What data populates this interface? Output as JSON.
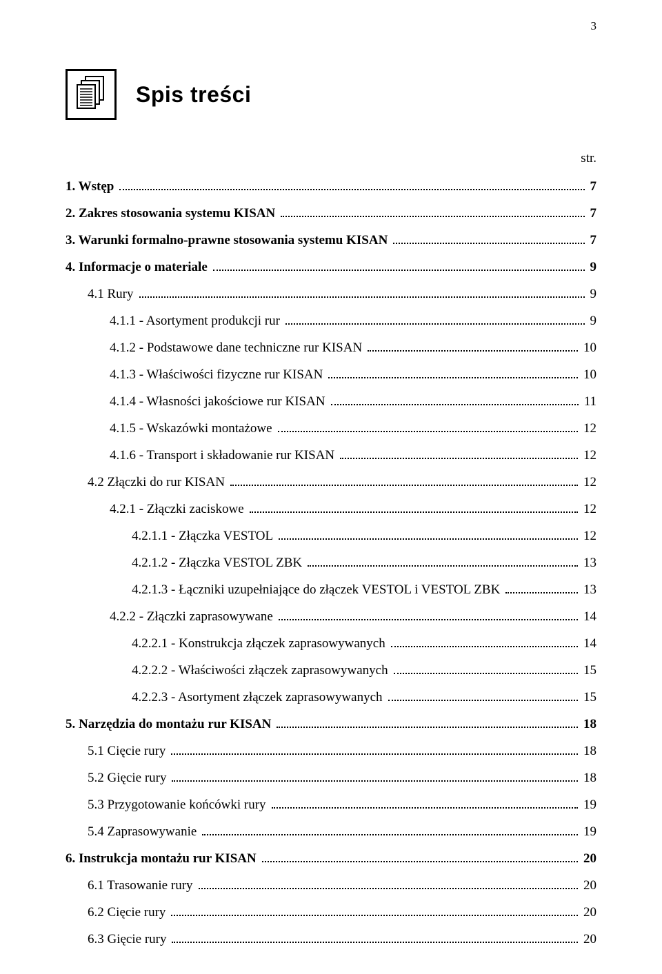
{
  "page_number": "3",
  "title": "Spis treści",
  "str_label": "str.",
  "toc": [
    {
      "label": "1. Wstęp",
      "page": "7",
      "level": 0,
      "bold": true
    },
    {
      "label": "2. Zakres stosowania systemu KISAN",
      "page": "7",
      "level": 0,
      "bold": true
    },
    {
      "label": "3. Warunki formalno-prawne stosowania systemu KISAN",
      "page": "7",
      "level": 0,
      "bold": true
    },
    {
      "label": "4. Informacje o materiale",
      "page": "9",
      "level": 0,
      "bold": true
    },
    {
      "label": "4.1 Rury",
      "page": "9",
      "level": 1,
      "bold": false
    },
    {
      "label": "4.1.1 - Asortyment produkcji rur",
      "page": "9",
      "level": 2,
      "bold": false
    },
    {
      "label": "4.1.2 - Podstawowe dane techniczne rur KISAN",
      "page": "10",
      "level": 2,
      "bold": false
    },
    {
      "label": "4.1.3 - Właściwości fizyczne rur KISAN",
      "page": "10",
      "level": 2,
      "bold": false
    },
    {
      "label": "4.1.4 - Własności jakościowe rur KISAN",
      "page": "11",
      "level": 2,
      "bold": false
    },
    {
      "label": "4.1.5 - Wskazówki montażowe",
      "page": "12",
      "level": 2,
      "bold": false
    },
    {
      "label": "4.1.6 - Transport i składowanie rur KISAN",
      "page": "12",
      "level": 2,
      "bold": false
    },
    {
      "label": "4.2 Złączki do rur KISAN",
      "page": "12",
      "level": 1,
      "bold": false
    },
    {
      "label": "4.2.1 - Złączki zaciskowe",
      "page": "12",
      "level": 2,
      "bold": false
    },
    {
      "label": "4.2.1.1 - Złączka VESTOL",
      "page": "12",
      "level": 3,
      "bold": false
    },
    {
      "label": "4.2.1.2 - Złączka VESTOL ZBK",
      "page": "13",
      "level": 3,
      "bold": false
    },
    {
      "label": "4.2.1.3 - Łączniki uzupełniające do złączek VESTOL i VESTOL ZBK",
      "page": "13",
      "level": 3,
      "bold": false
    },
    {
      "label": "4.2.2 - Złączki zaprasowywane",
      "page": "14",
      "level": 2,
      "bold": false
    },
    {
      "label": "4.2.2.1 - Konstrukcja złączek zaprasowywanych",
      "page": "14",
      "level": 3,
      "bold": false
    },
    {
      "label": "4.2.2.2 - Właściwości złączek zaprasowywanych",
      "page": "15",
      "level": 3,
      "bold": false
    },
    {
      "label": "4.2.2.3 - Asortyment złączek zaprasowywanych",
      "page": "15",
      "level": 3,
      "bold": false
    },
    {
      "label": "5. Narzędzia do montażu rur  KISAN",
      "page": "18",
      "level": 0,
      "bold": true
    },
    {
      "label": "5.1 Cięcie rury",
      "page": "18",
      "level": 1,
      "bold": false
    },
    {
      "label": "5.2 Gięcie rury",
      "page": "18",
      "level": 1,
      "bold": false
    },
    {
      "label": "5.3 Przygotowanie końcówki rury",
      "page": "19",
      "level": 1,
      "bold": false
    },
    {
      "label": "5.4 Zaprasowywanie",
      "page": "19",
      "level": 1,
      "bold": false
    },
    {
      "label": "6. Instrukcja montażu rur KISAN",
      "page": "20",
      "level": 0,
      "bold": true
    },
    {
      "label": "6.1 Trasowanie rury",
      "page": "20",
      "level": 1,
      "bold": false
    },
    {
      "label": "6.2 Cięcie rury",
      "page": "20",
      "level": 1,
      "bold": false
    },
    {
      "label": "6.3 Gięcie rury",
      "page": "20",
      "level": 1,
      "bold": false
    }
  ]
}
